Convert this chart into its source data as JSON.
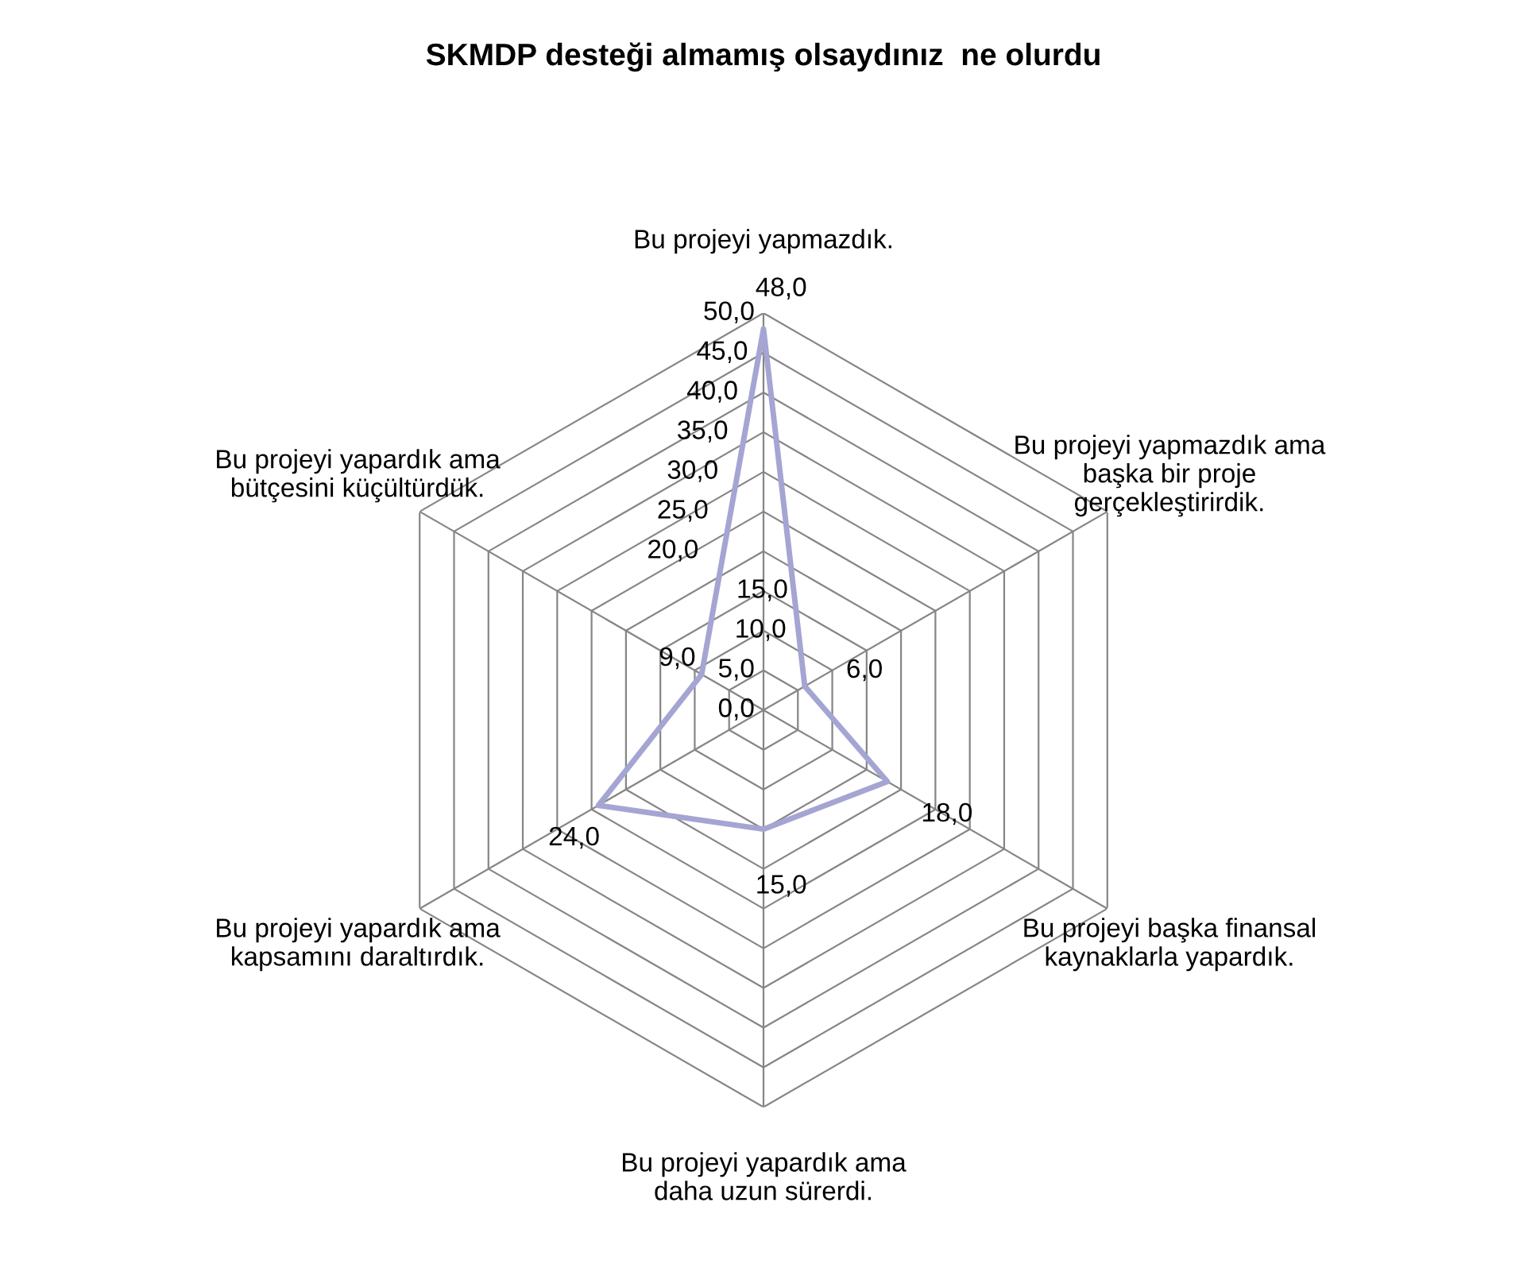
{
  "chart_data": {
    "type": "radar",
    "title": "SKMDP desteği almamış olsaydınız  ne olurdu",
    "categories": [
      "Bu projeyi yapmazdık.",
      "Bu projeyi yapmazdık ama\nbaşka bir proje\ngerçekleştirirdik.",
      "Bu projeyi başka finansal\nkaynaklarla yapardık.",
      "Bu projeyi yapardık ama\ndaha uzun sürerdi.",
      "Bu projeyi yapardık ama\nkapsamını daraltırdık.",
      "Bu projeyi yapardık ama\nbütçesini küçültürdük."
    ],
    "series": [
      {
        "color": "#a5a5d3",
        "values": [
          48,
          6,
          18,
          15,
          24,
          9
        ],
        "value_labels": [
          "48,0",
          "6,0",
          "18,0",
          "15,0",
          "24,0",
          "9,0"
        ]
      }
    ],
    "ylim": [
      0,
      50
    ],
    "yticks": [
      {
        "value": 0,
        "label": "0,0"
      },
      {
        "value": 5,
        "label": "5,0"
      },
      {
        "value": 10,
        "label": "10,0"
      },
      {
        "value": 15,
        "label": "15,0"
      },
      {
        "value": 20,
        "label": "20,0"
      },
      {
        "value": 25,
        "label": "25,0"
      },
      {
        "value": 30,
        "label": "30,0"
      },
      {
        "value": 35,
        "label": "35,0"
      },
      {
        "value": 40,
        "label": "40,0"
      },
      {
        "value": 45,
        "label": "45,0"
      },
      {
        "value": 50,
        "label": "50,0"
      }
    ],
    "grid": true,
    "legend": false,
    "marker": "none",
    "line_style": "solid"
  }
}
